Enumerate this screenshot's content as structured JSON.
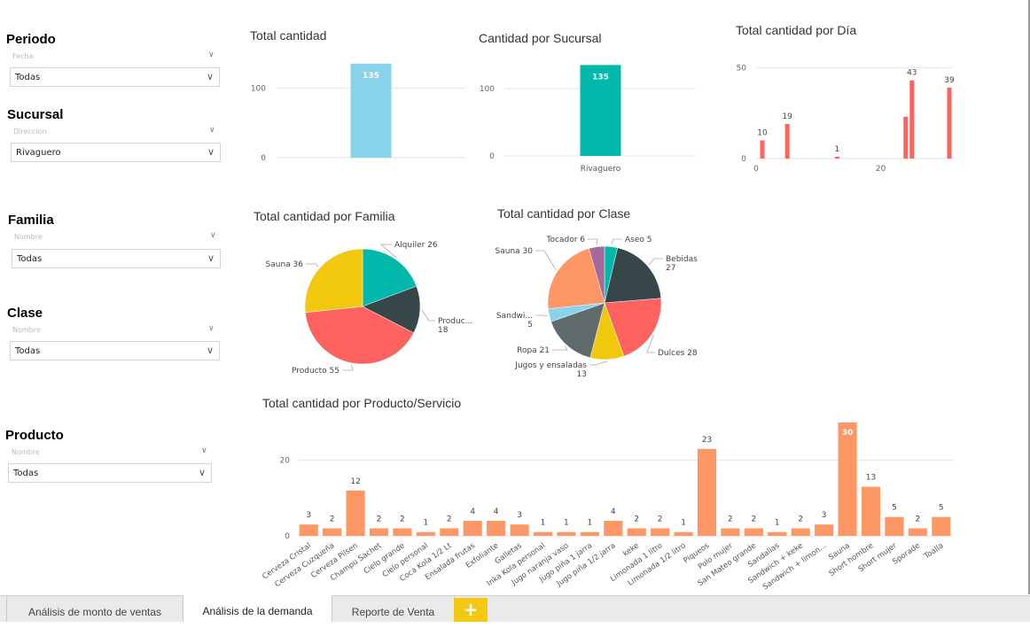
{
  "slicers": {
    "periodo": {
      "title": "Periodo",
      "field": "Fecha",
      "value": "Todas"
    },
    "sucursal": {
      "title": "Sucursal",
      "field": "Direccion",
      "value": "Rivaguero"
    },
    "familia": {
      "title": "Familia",
      "field": "Nombre",
      "value": "Todas"
    },
    "clase": {
      "title": "Clase",
      "field": "Nombre",
      "value": "Todas"
    },
    "producto": {
      "title": "Producto",
      "field": "Nombre",
      "value": "Todas"
    }
  },
  "colors": {
    "teal": "#01b8aa",
    "dark": "#374649",
    "red": "#fd625e",
    "yellow": "#f2c80f",
    "gray": "#5f6b6d",
    "light_blue": "#8ad4eb",
    "orange": "#fe9666",
    "purple": "#a66999",
    "product_bar": "#fd9766"
  },
  "tabs": [
    {
      "label": "Análisis de monto de ventas"
    },
    {
      "label": "Análisis de la demanda"
    },
    {
      "label": "Reporte de Venta"
    }
  ],
  "add_tab_label": "+",
  "chart_data": [
    {
      "id": "total",
      "type": "bar",
      "title": "Total cantidad",
      "categories": [
        ""
      ],
      "values": [
        135
      ],
      "ylim": [
        0,
        150
      ],
      "yticks": [
        0,
        100
      ],
      "data_labels": [
        "135"
      ],
      "color": "#8ad4eb"
    },
    {
      "id": "sucursal",
      "type": "bar",
      "title": "Cantidad por Sucursal",
      "categories": [
        "Rivaguero"
      ],
      "values": [
        135
      ],
      "ylim": [
        0,
        150
      ],
      "yticks": [
        0,
        100
      ],
      "data_labels": [
        "135"
      ],
      "color": "#01b8aa"
    },
    {
      "id": "dia",
      "type": "bar",
      "title": "Total cantidad por Día",
      "x": [
        1,
        5,
        13,
        24,
        25,
        31
      ],
      "values": [
        10,
        19,
        1,
        23,
        43,
        39
      ],
      "data_labels": [
        "10",
        "19",
        "1",
        "",
        "43",
        "39"
      ],
      "xlim": [
        0,
        31
      ],
      "xticks": [
        0,
        20
      ],
      "ylim": [
        0,
        55
      ],
      "yticks": [
        0,
        50
      ],
      "color": "#fd625e"
    },
    {
      "id": "familia",
      "type": "pie",
      "title": "Total cantidad por Familia",
      "slices": [
        {
          "label": "Alquiler 26",
          "value": 26,
          "color": "#01b8aa"
        },
        {
          "label": "Produc...",
          "label2": "18",
          "value": 18,
          "color": "#374649"
        },
        {
          "label": "Producto 55",
          "value": 55,
          "color": "#fd625e"
        },
        {
          "label": "Sauna 36",
          "value": 36,
          "color": "#f2c80f"
        }
      ]
    },
    {
      "id": "clase",
      "type": "pie",
      "title": "Total cantidad por Clase",
      "slices": [
        {
          "label": "Aseo 5",
          "value": 5,
          "color": "#01b8aa"
        },
        {
          "label": "Bebidas",
          "label2": "27",
          "value": 27,
          "color": "#374649"
        },
        {
          "label": "Dulces 28",
          "value": 28,
          "color": "#fd625e"
        },
        {
          "label": "Jugos y ensaladas",
          "label2": "13",
          "value": 13,
          "color": "#f2c80f"
        },
        {
          "label": "Ropa 21",
          "value": 21,
          "color": "#5f6b6d"
        },
        {
          "label": "Sandwi...",
          "label2": "5",
          "value": 5,
          "color": "#8ad4eb"
        },
        {
          "label": "Sauna 30",
          "value": 30,
          "color": "#fe9666"
        },
        {
          "label": "Tocador 6",
          "value": 6,
          "color": "#a66999"
        }
      ]
    },
    {
      "id": "producto",
      "type": "bar",
      "title": "Total cantidad por Producto/Servicio",
      "categories": [
        "Cerveza Cristal",
        "Cerveza Cuzqueña",
        "Cerveza Pilsen",
        "Champu Sachet",
        "Cielo grande",
        "Cielo personal",
        "Coca Kola 1/2 Lt",
        "Ensalada frutas",
        "Exfoliante",
        "Galletas",
        "Inka Kola personal",
        "Jugo naranja vaso",
        "Jugo piña 1 jarra",
        "Jugo piña 1/2 jarra",
        "keke",
        "Limonada 1 litro",
        "Limonada 1/2 litro",
        "Piqueos",
        "Polo mujer",
        "San Mateo grande",
        "Sandalias",
        "Sandwich + keke",
        "Sandwich + limon...",
        "Sauna",
        "Short hombre",
        "Short mujer",
        "Sporade",
        "Toalla"
      ],
      "values": [
        3,
        2,
        12,
        2,
        2,
        1,
        2,
        4,
        4,
        3,
        1,
        1,
        1,
        4,
        2,
        2,
        1,
        23,
        2,
        2,
        1,
        2,
        3,
        30,
        13,
        5,
        2,
        5
      ],
      "ylim": [
        0,
        30
      ],
      "yticks": [
        0,
        20
      ],
      "color": "#fd9766"
    }
  ]
}
